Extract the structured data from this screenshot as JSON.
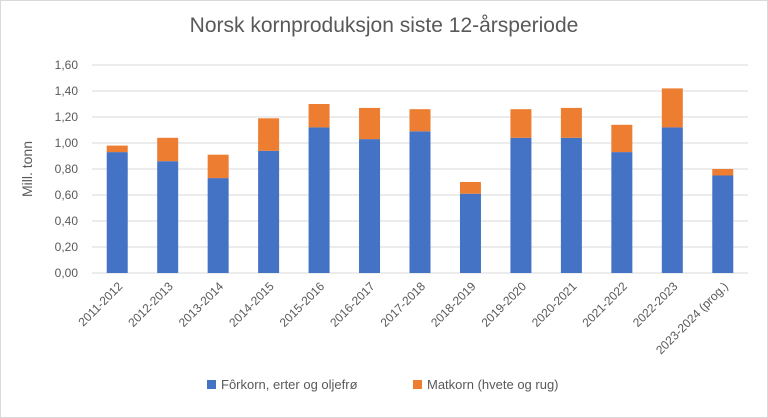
{
  "chart_data": {
    "type": "bar",
    "stacked": true,
    "title": "Norsk kornproduksjon siste 12-årsperiode",
    "ylabel": "Mill. tonn",
    "xlabel": "",
    "ylim": [
      0,
      1.6
    ],
    "ytick_step": 0.2,
    "grid": true,
    "legend_position": "bottom",
    "categories": [
      "2011-2012",
      "2012-2013",
      "2013-2014",
      "2014-2015",
      "2015-2016",
      "2016-2017",
      "2017-2018",
      "2018-2019",
      "2019-2020",
      "2020-2021",
      "2021-2022",
      "2022-2023",
      "2023-2024 (prog.)"
    ],
    "series": [
      {
        "name": "Fôrkorn, erter og oljefrø",
        "color": "#4472c4",
        "values": [
          0.93,
          0.86,
          0.73,
          0.94,
          1.12,
          1.03,
          1.09,
          0.61,
          1.04,
          1.04,
          0.93,
          1.12,
          0.75
        ]
      },
      {
        "name": "Matkorn (hvete og rug)",
        "color": "#ed7d31",
        "values": [
          0.05,
          0.18,
          0.18,
          0.25,
          0.18,
          0.24,
          0.17,
          0.09,
          0.22,
          0.23,
          0.21,
          0.3,
          0.05
        ]
      }
    ]
  }
}
